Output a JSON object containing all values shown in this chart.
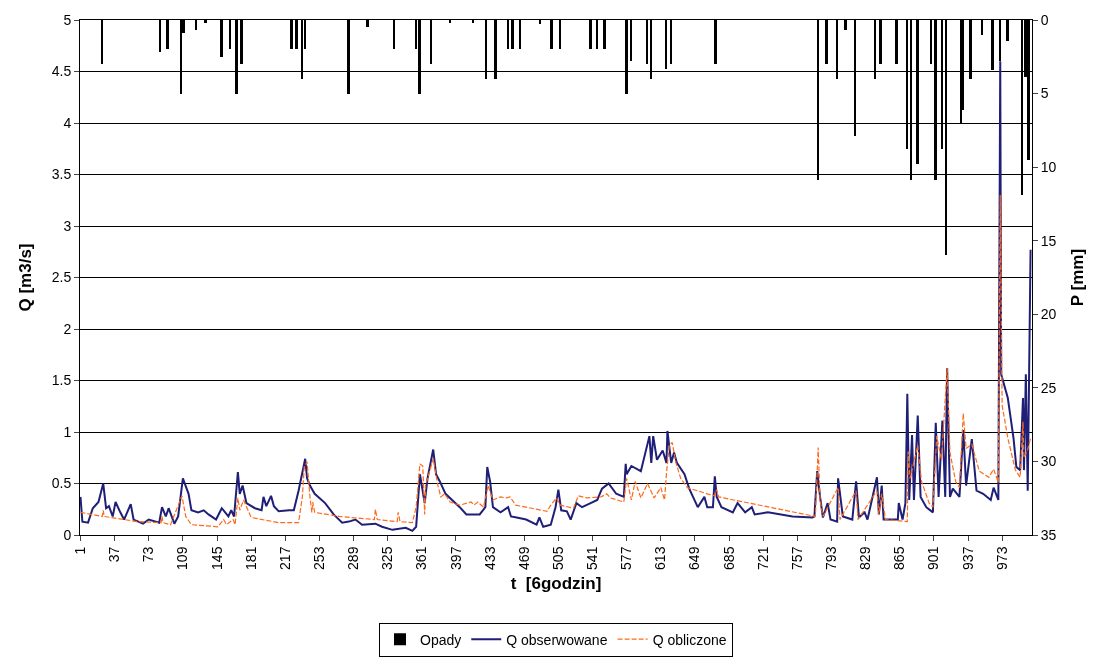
{
  "chart_data": {
    "type": "line",
    "xlabel": "t  [6godzin]",
    "ylabel": "Q [m3/s]",
    "y2label": "P [mm]",
    "xlim": [
      0.5,
      1004.5
    ],
    "xticks": [
      1,
      37,
      73,
      109,
      145,
      181,
      217,
      253,
      289,
      325,
      361,
      397,
      433,
      469,
      505,
      541,
      577,
      613,
      649,
      685,
      721,
      757,
      793,
      829,
      865,
      901,
      937,
      973
    ],
    "ylim": [
      0,
      5
    ],
    "yticks": [
      0,
      0.5,
      1,
      1.5,
      2,
      2.5,
      3,
      3.5,
      4,
      4.5,
      5
    ],
    "y2lim": [
      35,
      0
    ],
    "y2ticks": [
      0,
      5,
      10,
      15,
      20,
      25,
      30,
      35
    ],
    "grid": "y",
    "legend": "bottom",
    "marker": "none",
    "series": [
      {
        "name": "Opady",
        "type": "bar",
        "axis": "y2",
        "color": "#000000",
        "x": [
          24,
          85,
          93,
          107,
          110,
          123,
          133,
          150,
          159,
          166,
          171,
          224,
          229,
          235,
          238,
          284,
          304,
          332,
          355,
          359,
          371,
          391,
          415,
          429,
          439,
          452,
          457,
          465,
          486,
          498,
          507,
          539,
          546,
          554,
          577,
          582,
          599,
          603,
          619,
          624,
          671,
          779,
          788,
          799,
          808,
          818,
          839,
          845,
          862,
          873,
          877,
          884,
          898,
          903,
          910,
          914,
          930,
          932,
          940,
          952,
          963,
          971,
          979,
          994,
          998,
          1001
        ],
        "values": [
          3.0,
          2.2,
          2.0,
          5.0,
          0.9,
          0.7,
          0.2,
          2.5,
          2.0,
          5.0,
          3.0,
          2.0,
          2.0,
          4.0,
          2.0,
          5.0,
          0.5,
          2.0,
          2.0,
          5.0,
          3.0,
          0.2,
          0.2,
          4.0,
          4.0,
          2.0,
          2.0,
          2.0,
          0.3,
          2.0,
          2.0,
          2.0,
          2.0,
          2.0,
          5.0,
          2.8,
          3.0,
          4.0,
          3.3,
          3.0,
          3.0,
          10.9,
          3.0,
          4.0,
          0.7,
          7.9,
          4.0,
          3.0,
          3.0,
          8.8,
          10.9,
          9.8,
          3.0,
          10.9,
          8.8,
          16.0,
          7.1,
          6.1,
          4.0,
          1.0,
          3.4,
          2.8,
          1.4,
          11.9,
          3.9,
          9.5
        ]
      },
      {
        "name": "Q obserwowane",
        "line_style": "solid",
        "color": "#1f1f78",
        "x": [
          1,
          3,
          9,
          14,
          20,
          25,
          28,
          31,
          35,
          38,
          43,
          47,
          54,
          57,
          67,
          73,
          84,
          87,
          91,
          94,
          100,
          104,
          109,
          115,
          118,
          125,
          131,
          136,
          144,
          150,
          157,
          160,
          163,
          167,
          169,
          172,
          176,
          185,
          192,
          194,
          197,
          202,
          205,
          210,
          221,
          226,
          231,
          238,
          240,
          243,
          248,
          259,
          268,
          277,
          284,
          291,
          298,
          312,
          319,
          330,
          344,
          351,
          355,
          359,
          364,
          367,
          373,
          376,
          380,
          386,
          401,
          408,
          422,
          428,
          430,
          433,
          436,
          444,
          452,
          455,
          461,
          471,
          482,
          485,
          489,
          497,
          502,
          505,
          508,
          514,
          518,
          524,
          530,
          539,
          546,
          551,
          558,
          566,
          574,
          576,
          577,
          582,
          592,
          601,
          603,
          605,
          609,
          615,
          619,
          620,
          624,
          627,
          630,
          638,
          643,
          652,
          659,
          662,
          668,
          670,
          672,
          677,
          689,
          694,
          702,
          709,
          712,
          726,
          752,
          773,
          775,
          778,
          781,
          784,
          789,
          792,
          799,
          800,
          805,
          815,
          819,
          822,
          828,
          831,
          841,
          843,
          846,
          848,
          863,
          864,
          868,
          871,
          873,
          875,
          878,
          880,
          884,
          887,
          893,
          900,
          903,
          906,
          910,
          913,
          915,
          918,
          921,
          928,
          932,
          935,
          941,
          946,
          953,
          961,
          964,
          969,
          971,
          972,
          979,
          985,
          988,
          992,
          995,
          996,
          998,
          1000,
          1003
        ],
        "values": [
          0.37,
          0.13,
          0.12,
          0.26,
          0.32,
          0.5,
          0.26,
          0.28,
          0.18,
          0.32,
          0.22,
          0.15,
          0.3,
          0.15,
          0.11,
          0.15,
          0.12,
          0.27,
          0.18,
          0.26,
          0.11,
          0.18,
          0.55,
          0.4,
          0.24,
          0.22,
          0.24,
          0.2,
          0.15,
          0.26,
          0.18,
          0.24,
          0.18,
          0.61,
          0.4,
          0.48,
          0.31,
          0.26,
          0.24,
          0.37,
          0.28,
          0.38,
          0.28,
          0.23,
          0.24,
          0.24,
          0.43,
          0.74,
          0.55,
          0.48,
          0.4,
          0.31,
          0.2,
          0.12,
          0.13,
          0.15,
          0.1,
          0.11,
          0.08,
          0.05,
          0.07,
          0.04,
          0.08,
          0.59,
          0.31,
          0.55,
          0.83,
          0.59,
          0.52,
          0.4,
          0.27,
          0.2,
          0.2,
          0.27,
          0.66,
          0.52,
          0.27,
          0.22,
          0.27,
          0.18,
          0.17,
          0.15,
          0.1,
          0.17,
          0.08,
          0.1,
          0.27,
          0.44,
          0.24,
          0.23,
          0.15,
          0.31,
          0.27,
          0.31,
          0.34,
          0.45,
          0.5,
          0.4,
          0.37,
          0.69,
          0.59,
          0.67,
          0.62,
          0.96,
          0.7,
          0.96,
          0.73,
          0.82,
          0.7,
          1.01,
          0.7,
          0.8,
          0.7,
          0.59,
          0.45,
          0.27,
          0.37,
          0.27,
          0.27,
          0.57,
          0.37,
          0.27,
          0.22,
          0.31,
          0.22,
          0.27,
          0.2,
          0.22,
          0.18,
          0.17,
          0.18,
          0.62,
          0.37,
          0.17,
          0.31,
          0.15,
          0.13,
          0.55,
          0.18,
          0.15,
          0.52,
          0.17,
          0.22,
          0.15,
          0.56,
          0.2,
          0.48,
          0.15,
          0.15,
          0.31,
          0.15,
          0.31,
          1.37,
          0.34,
          0.97,
          0.34,
          1.16,
          0.37,
          0.27,
          0.22,
          1.09,
          0.37,
          1.11,
          0.37,
          1.62,
          0.37,
          0.45,
          0.37,
          1.02,
          0.48,
          0.93,
          0.43,
          0.4,
          0.34,
          0.46,
          0.34,
          4.6,
          1.56,
          1.33,
          0.94,
          0.66,
          0.63,
          1.33,
          0.63,
          1.56,
          0.43,
          2.77
        ]
      },
      {
        "name": "Q obliczone",
        "line_style": "dashed",
        "color": "#ff6a1a",
        "x": [
          1,
          24,
          25,
          26,
          61,
          86,
          87,
          88,
          96,
          108,
          112,
          118,
          146,
          152,
          155,
          162,
          164,
          167,
          169,
          173,
          181,
          210,
          231,
          235,
          237,
          240,
          243,
          245,
          246,
          248,
          274,
          311,
          312,
          314,
          335,
          336,
          338,
          351,
          355,
          359,
          362,
          364,
          365,
          373,
          378,
          381,
          385,
          391,
          401,
          413,
          416,
          420,
          426,
          431,
          436,
          444,
          450,
          454,
          460,
          493,
          497,
          503,
          507,
          521,
          526,
          535,
          550,
          556,
          560,
          574,
          577,
          582,
          586,
          592,
          599,
          606,
          613,
          617,
          619,
          622,
          625,
          629,
          634,
          641,
          662,
          670,
          672,
          674,
          776,
          779,
          781,
          784,
          800,
          802,
          819,
          821,
          841,
          843,
          846,
          850,
          873,
          874,
          876,
          884,
          888,
          896,
          900,
          904,
          909,
          915,
          918,
          924,
          928,
          932,
          935,
          941,
          949,
          959,
          964,
          969,
          971,
          973,
          979,
          987,
          992,
          995,
          996,
          1000,
          1003
        ],
        "values": [
          0.22,
          0.18,
          0.24,
          0.18,
          0.13,
          0.12,
          0.18,
          0.12,
          0.1,
          0.38,
          0.18,
          0.1,
          0.08,
          0.15,
          0.1,
          0.15,
          0.1,
          0.36,
          0.24,
          0.34,
          0.17,
          0.12,
          0.12,
          0.37,
          0.66,
          0.71,
          0.37,
          0.22,
          0.32,
          0.22,
          0.18,
          0.15,
          0.25,
          0.15,
          0.13,
          0.22,
          0.13,
          0.12,
          0.27,
          0.69,
          0.67,
          0.2,
          0.48,
          0.74,
          0.48,
          0.37,
          0.4,
          0.32,
          0.29,
          0.32,
          0.29,
          0.32,
          0.27,
          0.48,
          0.34,
          0.37,
          0.36,
          0.37,
          0.29,
          0.23,
          0.29,
          0.36,
          0.29,
          0.26,
          0.38,
          0.36,
          0.37,
          0.4,
          0.36,
          0.32,
          0.55,
          0.34,
          0.52,
          0.36,
          0.5,
          0.36,
          0.46,
          0.34,
          0.6,
          0.87,
          0.9,
          0.7,
          0.55,
          0.46,
          0.4,
          0.38,
          0.44,
          0.37,
          0.18,
          0.85,
          0.34,
          0.18,
          0.46,
          0.15,
          0.43,
          0.15,
          0.43,
          0.2,
          0.4,
          0.15,
          0.13,
          0.81,
          0.55,
          0.87,
          0.52,
          0.31,
          0.27,
          0.96,
          0.73,
          1.62,
          0.8,
          0.52,
          0.46,
          1.18,
          0.84,
          0.88,
          0.62,
          0.56,
          0.64,
          0.51,
          3.3,
          1.26,
          0.94,
          0.63,
          0.56,
          1.1,
          0.75,
          0.83,
          0.94
        ]
      }
    ]
  }
}
